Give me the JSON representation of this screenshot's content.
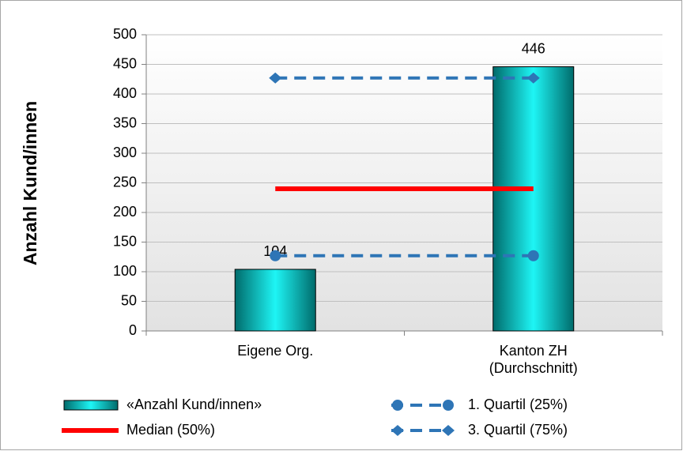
{
  "chart_data": {
    "type": "bar",
    "y_label": "Anzahl Kund/innen",
    "categories": [
      "Eigene Org.",
      "Kanton ZH\n(Durchschnitt)"
    ],
    "series": [
      {
        "name": "«Anzahl Kund/innen»",
        "type": "bar",
        "color": "#00a3a3",
        "values": [
          104,
          446
        ]
      },
      {
        "name": "Median (50%)",
        "type": "line",
        "color": "#ff0000",
        "values": [
          240,
          240
        ]
      },
      {
        "name": "1. Quartil (25%)",
        "type": "line",
        "color": "#2e75b6",
        "dash": true,
        "marker": "circle",
        "values": [
          127,
          127
        ]
      },
      {
        "name": "3. Quartil (75%)",
        "type": "line",
        "color": "#2e75b6",
        "dash": true,
        "marker": "diamond",
        "values": [
          427,
          427
        ]
      }
    ],
    "ylim": [
      0,
      500
    ],
    "yticks": [
      0,
      50,
      100,
      150,
      200,
      250,
      300,
      350,
      400,
      450,
      500
    ],
    "grid": true
  }
}
